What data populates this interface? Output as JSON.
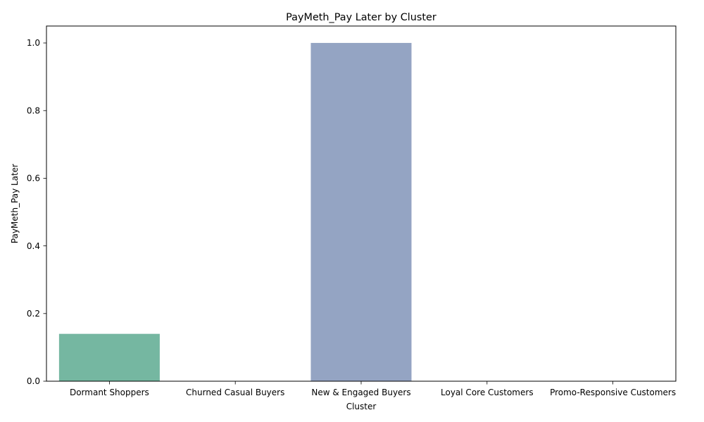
{
  "chart_data": {
    "type": "bar",
    "title": "PayMeth_Pay Later by Cluster",
    "xlabel": "Cluster",
    "ylabel": "PayMeth_Pay Later",
    "categories": [
      "Dormant Shoppers",
      "Churned Casual Buyers",
      "New & Engaged Buyers",
      "Loyal Core Customers",
      "Promo-Responsive Customers"
    ],
    "values": [
      0.14,
      0.0,
      1.0,
      0.0,
      0.0
    ],
    "colors": [
      "#66c2a5",
      "#fc8d62",
      "#8da0cb",
      "#e78ac3",
      "#a6d854"
    ],
    "ylim": [
      0,
      1.05
    ],
    "yticks": [
      0.0,
      0.2,
      0.4,
      0.6,
      0.8,
      1.0
    ],
    "ytick_labels": [
      "0.0",
      "0.2",
      "0.4",
      "0.6",
      "0.8",
      "1.0"
    ],
    "grid": false,
    "legend": "none"
  }
}
